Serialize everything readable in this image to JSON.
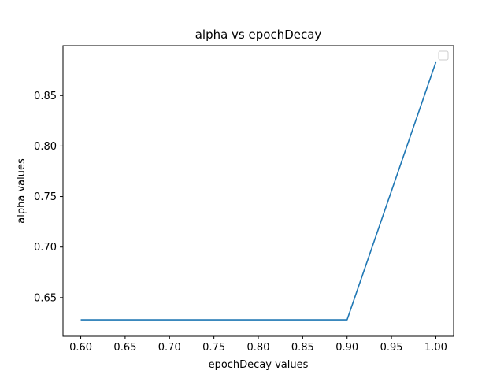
{
  "chart_data": {
    "type": "line",
    "title": "alpha vs epochDecay",
    "xlabel": "epochDecay values",
    "ylabel": "alpha values",
    "xlim": [
      0.58,
      1.02
    ],
    "ylim": [
      0.6117,
      0.8993
    ],
    "x_ticks": [
      "0.60",
      "0.65",
      "0.70",
      "0.75",
      "0.80",
      "0.85",
      "0.90",
      "0.95",
      "1.00"
    ],
    "y_ticks": [
      "0.65",
      "0.70",
      "0.75",
      "0.80",
      "0.85"
    ],
    "grid": false,
    "legend": "top-right",
    "series": [
      {
        "color": "#1f77b4",
        "x": [
          0.6,
          0.9,
          1.0
        ],
        "y": [
          0.628,
          0.628,
          0.883
        ]
      }
    ]
  }
}
